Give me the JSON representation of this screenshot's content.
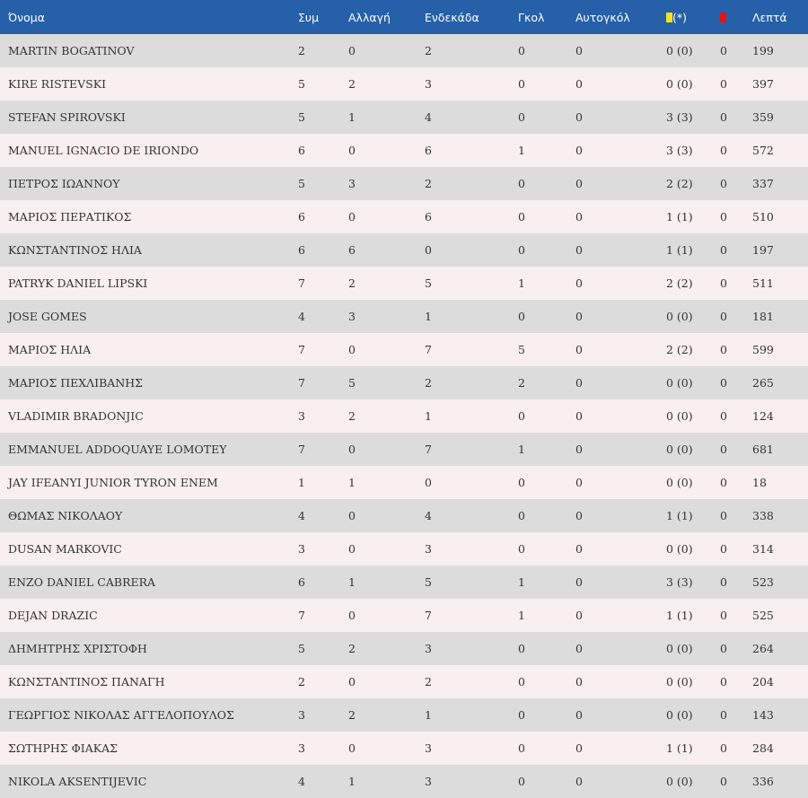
{
  "headers": {
    "name": "Όνομα",
    "apps": "Συμ",
    "sub": "Αλλαγή",
    "lineup": "Ενδεκάδα",
    "goals": "Γκολ",
    "own_goals": "Αυτογκόλ",
    "yellow_suffix": "(*)",
    "minutes": "Λεπτά"
  },
  "icons": {
    "yellow": "yellow-card-icon",
    "red": "red-card-icon"
  },
  "colors": {
    "header_bg": "#2560a8",
    "row_a": "#dcdcdc",
    "row_b": "#f8eff0",
    "yellow_card": "#f4e21a",
    "red_card": "#e51313"
  },
  "players": [
    {
      "name": "MARTIN BOGATINOV",
      "apps": "2",
      "sub": "0",
      "lineup": "2",
      "goals": "0",
      "own_goals": "0",
      "yellow": "0 (0)",
      "red": "0",
      "minutes": "199"
    },
    {
      "name": "KIRE RISTEVSKI",
      "apps": "5",
      "sub": "2",
      "lineup": "3",
      "goals": "0",
      "own_goals": "0",
      "yellow": "0 (0)",
      "red": "0",
      "minutes": "397"
    },
    {
      "name": "STEFAN SPIROVSKI",
      "apps": "5",
      "sub": "1",
      "lineup": "4",
      "goals": "0",
      "own_goals": "0",
      "yellow": "3 (3)",
      "red": "0",
      "minutes": "359"
    },
    {
      "name": "MANUEL IGNACIO DE IRIONDO",
      "apps": "6",
      "sub": "0",
      "lineup": "6",
      "goals": "1",
      "own_goals": "0",
      "yellow": "3 (3)",
      "red": "0",
      "minutes": "572"
    },
    {
      "name": "ΠΕΤΡΟΣ ΙΩΑΝΝΟΥ",
      "apps": "5",
      "sub": "3",
      "lineup": "2",
      "goals": "0",
      "own_goals": "0",
      "yellow": "2 (2)",
      "red": "0",
      "minutes": "337"
    },
    {
      "name": "ΜΑΡΙΟΣ ΠΕΡΑΤΙΚΟΣ",
      "apps": "6",
      "sub": "0",
      "lineup": "6",
      "goals": "0",
      "own_goals": "0",
      "yellow": "1 (1)",
      "red": "0",
      "minutes": "510"
    },
    {
      "name": "ΚΩΝΣΤΑΝΤΙΝΟΣ ΗΛΙΑ",
      "apps": "6",
      "sub": "6",
      "lineup": "0",
      "goals": "0",
      "own_goals": "0",
      "yellow": "1 (1)",
      "red": "0",
      "minutes": "197"
    },
    {
      "name": "PATRYK DANIEL LIPSKI",
      "apps": "7",
      "sub": "2",
      "lineup": "5",
      "goals": "1",
      "own_goals": "0",
      "yellow": "2 (2)",
      "red": "0",
      "minutes": "511"
    },
    {
      "name": "JOSE GOMES",
      "apps": "4",
      "sub": "3",
      "lineup": "1",
      "goals": "0",
      "own_goals": "0",
      "yellow": "0 (0)",
      "red": "0",
      "minutes": "181"
    },
    {
      "name": "ΜΑΡΙΟΣ ΗΛΙΑ",
      "apps": "7",
      "sub": "0",
      "lineup": "7",
      "goals": "5",
      "own_goals": "0",
      "yellow": "2 (2)",
      "red": "0",
      "minutes": "599"
    },
    {
      "name": "ΜΑΡΙΟΣ ΠΕΧΛΙΒΑΝΗΣ",
      "apps": "7",
      "sub": "5",
      "lineup": "2",
      "goals": "2",
      "own_goals": "0",
      "yellow": "0 (0)",
      "red": "0",
      "minutes": "265"
    },
    {
      "name": "VLADIMIR BRADONJIC",
      "apps": "3",
      "sub": "2",
      "lineup": "1",
      "goals": "0",
      "own_goals": "0",
      "yellow": "0 (0)",
      "red": "0",
      "minutes": "124"
    },
    {
      "name": "EMMANUEL ADDOQUAYE LOMOTEY",
      "apps": "7",
      "sub": "0",
      "lineup": "7",
      "goals": "1",
      "own_goals": "0",
      "yellow": "0 (0)",
      "red": "0",
      "minutes": "681"
    },
    {
      "name": "JAY IFEANYI JUNIOR TYRON ENEM",
      "apps": "1",
      "sub": "1",
      "lineup": "0",
      "goals": "0",
      "own_goals": "0",
      "yellow": "0 (0)",
      "red": "0",
      "minutes": "18"
    },
    {
      "name": "ΘΩΜΑΣ ΝΙΚΟΛΑΟΥ",
      "apps": "4",
      "sub": "0",
      "lineup": "4",
      "goals": "0",
      "own_goals": "0",
      "yellow": "1 (1)",
      "red": "0",
      "minutes": "338"
    },
    {
      "name": "DUSAN MARKOVIC",
      "apps": "3",
      "sub": "0",
      "lineup": "3",
      "goals": "0",
      "own_goals": "0",
      "yellow": "0 (0)",
      "red": "0",
      "minutes": "314"
    },
    {
      "name": "ENZO DANIEL CABRERA",
      "apps": "6",
      "sub": "1",
      "lineup": "5",
      "goals": "1",
      "own_goals": "0",
      "yellow": "3 (3)",
      "red": "0",
      "minutes": "523"
    },
    {
      "name": "DEJAN DRAZIC",
      "apps": "7",
      "sub": "0",
      "lineup": "7",
      "goals": "1",
      "own_goals": "0",
      "yellow": "1 (1)",
      "red": "0",
      "minutes": "525"
    },
    {
      "name": "ΔΗΜΗΤΡΗΣ ΧΡΙΣΤΟΦΗ",
      "apps": "5",
      "sub": "2",
      "lineup": "3",
      "goals": "0",
      "own_goals": "0",
      "yellow": "0 (0)",
      "red": "0",
      "minutes": "264"
    },
    {
      "name": "ΚΩΝΣΤΑΝΤΙΝΟΣ ΠΑΝΑΓΗ",
      "apps": "2",
      "sub": "0",
      "lineup": "2",
      "goals": "0",
      "own_goals": "0",
      "yellow": "0 (0)",
      "red": "0",
      "minutes": "204"
    },
    {
      "name": "ΓΕΩΡΓΙΟΣ ΝΙΚΟΛΑΣ ΑΓΓΕΛΟΠΟΥΛΟΣ",
      "apps": "3",
      "sub": "2",
      "lineup": "1",
      "goals": "0",
      "own_goals": "0",
      "yellow": "0 (0)",
      "red": "0",
      "minutes": "143"
    },
    {
      "name": "ΣΩΤΗΡΗΣ ΦΙΑΚΑΣ",
      "apps": "3",
      "sub": "0",
      "lineup": "3",
      "goals": "0",
      "own_goals": "0",
      "yellow": "1 (1)",
      "red": "0",
      "minutes": "284"
    },
    {
      "name": "NIKOLA AKSENTIJEVIC",
      "apps": "4",
      "sub": "1",
      "lineup": "3",
      "goals": "0",
      "own_goals": "0",
      "yellow": "0 (0)",
      "red": "0",
      "minutes": "336"
    }
  ]
}
